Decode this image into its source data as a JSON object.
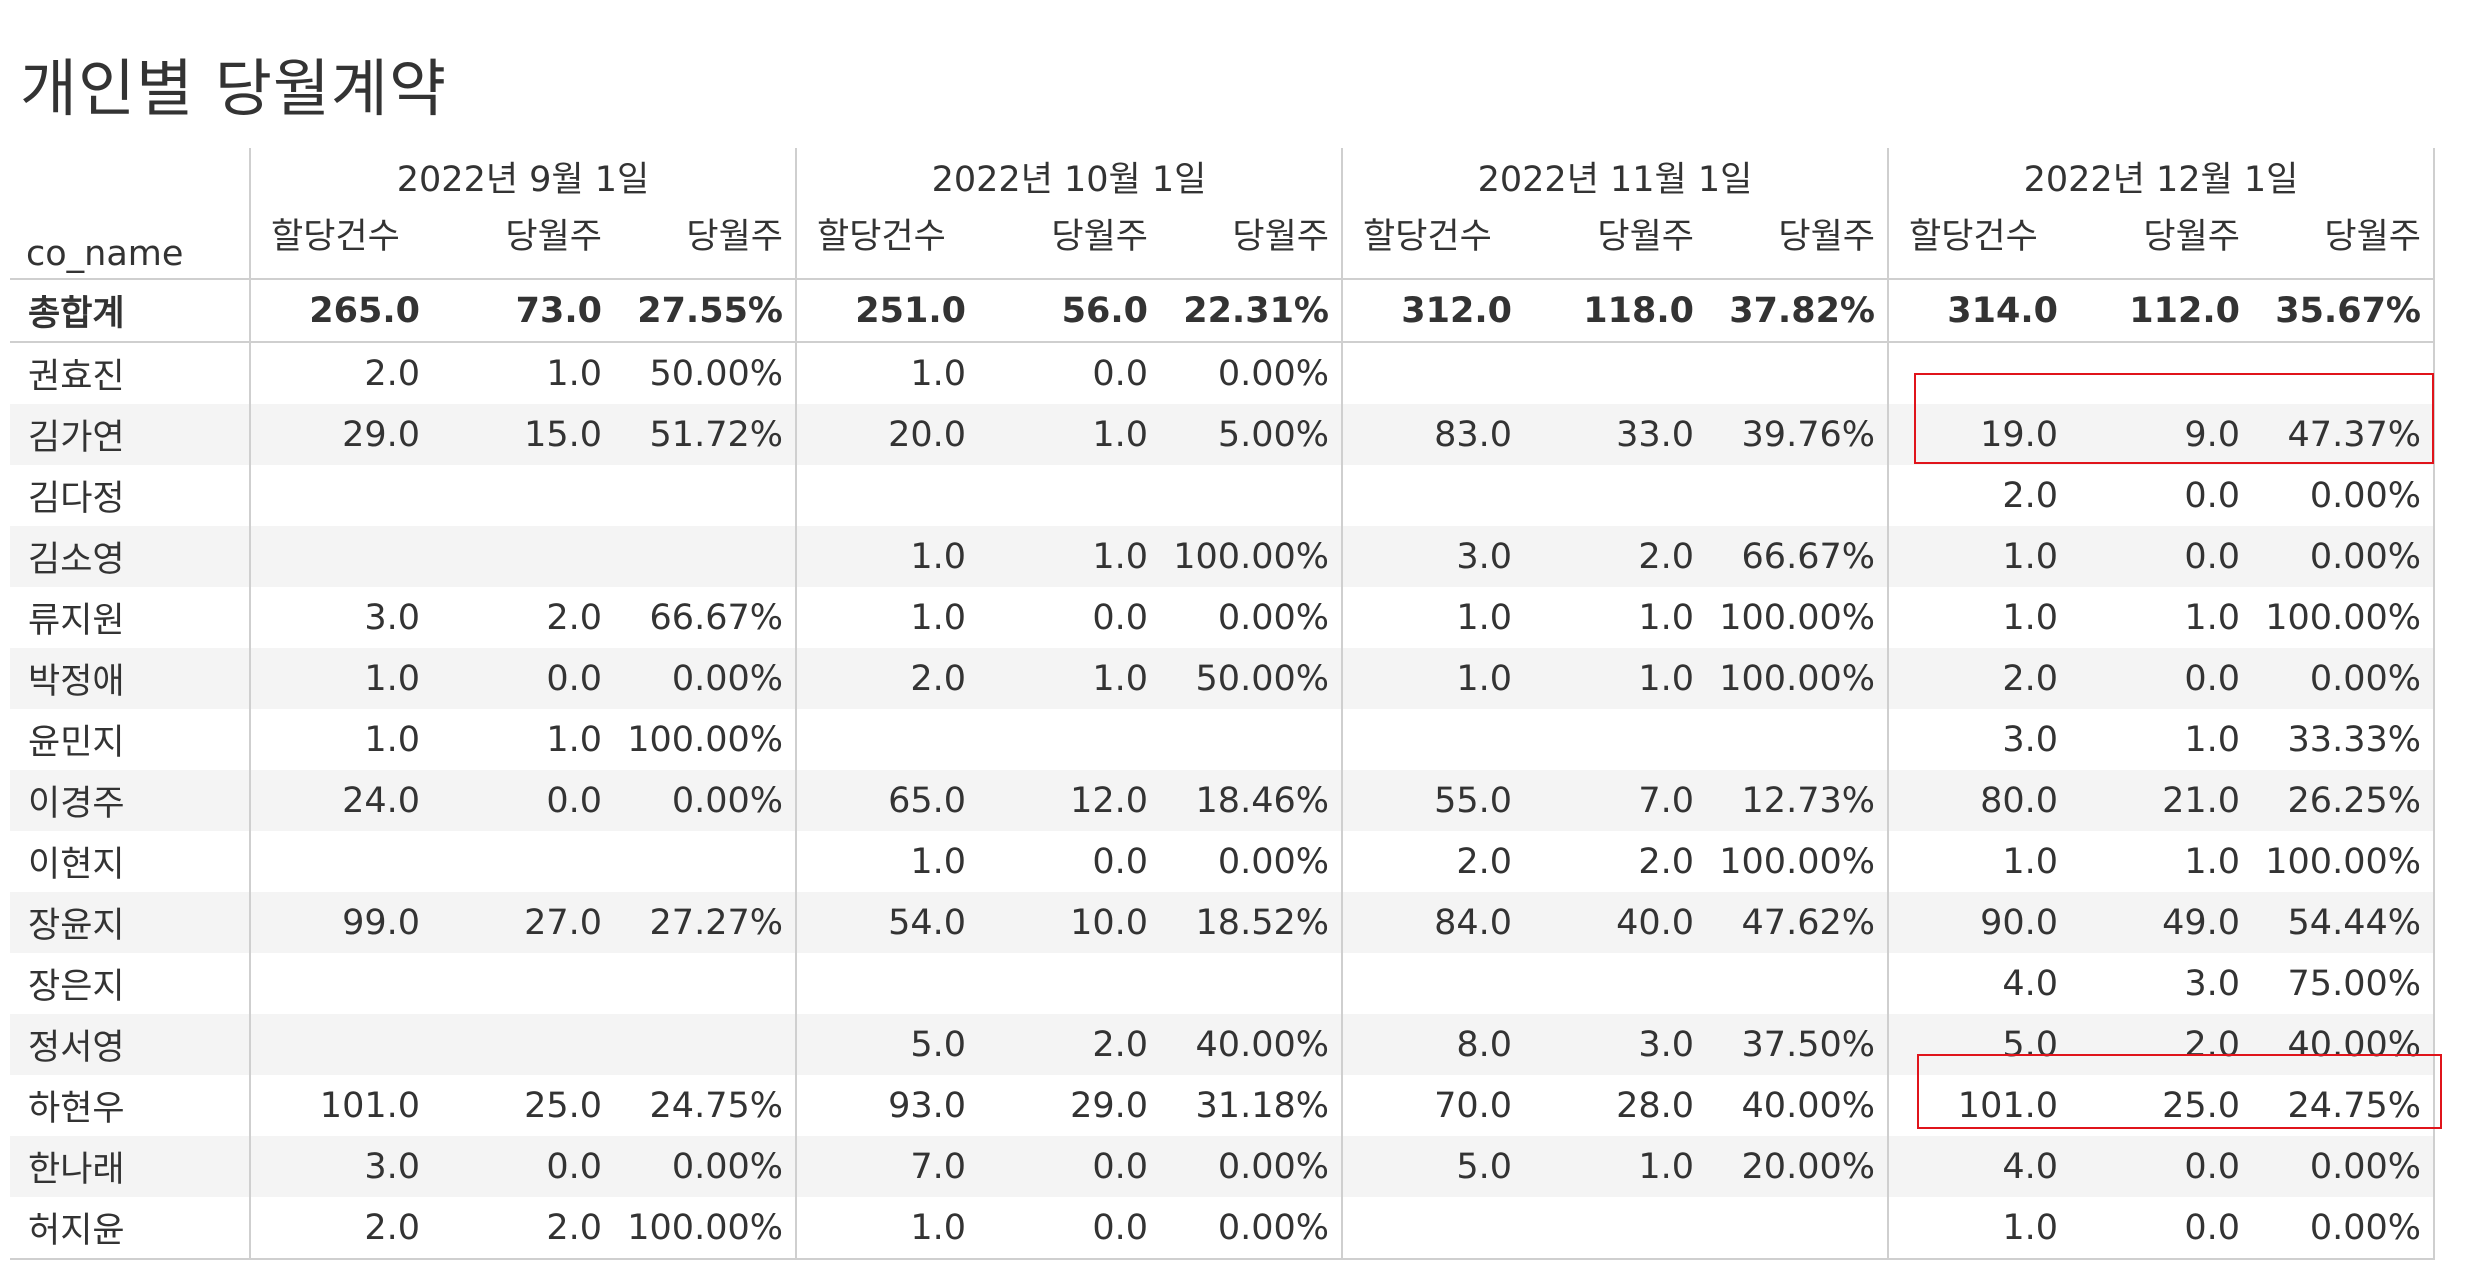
{
  "title": "개인별 당월계약",
  "row_header": "co_name",
  "periods": [
    "2022년 9월 1일",
    "2022년 10월 1일",
    "2022년 11월 1일",
    "2022년 12월 1일"
  ],
  "sub_headers": [
    "할당건수",
    "당월주",
    "당월주"
  ],
  "rows": [
    {
      "name": "총합계",
      "cells": [
        "265.0",
        "73.0",
        "27.55%",
        "251.0",
        "56.0",
        "22.31%",
        "312.0",
        "118.0",
        "37.82%",
        "314.0",
        "112.0",
        "35.67%"
      ]
    },
    {
      "name": "권효진",
      "cells": [
        "2.0",
        "1.0",
        "50.00%",
        "1.0",
        "0.0",
        "0.00%",
        "",
        "",
        "",
        "",
        "",
        ""
      ]
    },
    {
      "name": "김가연",
      "cells": [
        "29.0",
        "15.0",
        "51.72%",
        "20.0",
        "1.0",
        "5.00%",
        "83.0",
        "33.0",
        "39.76%",
        "19.0",
        "9.0",
        "47.37%"
      ]
    },
    {
      "name": "김다정",
      "cells": [
        "",
        "",
        "",
        "",
        "",
        "",
        "",
        "",
        "",
        "2.0",
        "0.0",
        "0.00%"
      ]
    },
    {
      "name": "김소영",
      "cells": [
        "",
        "",
        "",
        "1.0",
        "1.0",
        "100.00%",
        "3.0",
        "2.0",
        "66.67%",
        "1.0",
        "0.0",
        "0.00%"
      ]
    },
    {
      "name": "류지원",
      "cells": [
        "3.0",
        "2.0",
        "66.67%",
        "1.0",
        "0.0",
        "0.00%",
        "1.0",
        "1.0",
        "100.00%",
        "1.0",
        "1.0",
        "100.00%"
      ]
    },
    {
      "name": "박정애",
      "cells": [
        "1.0",
        "0.0",
        "0.00%",
        "2.0",
        "1.0",
        "50.00%",
        "1.0",
        "1.0",
        "100.00%",
        "2.0",
        "0.0",
        "0.00%"
      ]
    },
    {
      "name": "윤민지",
      "cells": [
        "1.0",
        "1.0",
        "100.00%",
        "",
        "",
        "",
        "",
        "",
        "",
        "3.0",
        "1.0",
        "33.33%"
      ]
    },
    {
      "name": "이경주",
      "cells": [
        "24.0",
        "0.0",
        "0.00%",
        "65.0",
        "12.0",
        "18.46%",
        "55.0",
        "7.0",
        "12.73%",
        "80.0",
        "21.0",
        "26.25%"
      ]
    },
    {
      "name": "이현지",
      "cells": [
        "",
        "",
        "",
        "1.0",
        "0.0",
        "0.00%",
        "2.0",
        "2.0",
        "100.00%",
        "1.0",
        "1.0",
        "100.00%"
      ]
    },
    {
      "name": "장윤지",
      "cells": [
        "99.0",
        "27.0",
        "27.27%",
        "54.0",
        "10.0",
        "18.52%",
        "84.0",
        "40.0",
        "47.62%",
        "90.0",
        "49.0",
        "54.44%"
      ]
    },
    {
      "name": "장은지",
      "cells": [
        "",
        "",
        "",
        "",
        "",
        "",
        "",
        "",
        "",
        "4.0",
        "3.0",
        "75.00%"
      ]
    },
    {
      "name": "정서영",
      "cells": [
        "",
        "",
        "",
        "5.0",
        "2.0",
        "40.00%",
        "8.0",
        "3.0",
        "37.50%",
        "5.0",
        "2.0",
        "40.00%"
      ]
    },
    {
      "name": "하현우",
      "cells": [
        "101.0",
        "25.0",
        "24.75%",
        "93.0",
        "29.0",
        "31.18%",
        "70.0",
        "28.0",
        "40.00%",
        "101.0",
        "25.0",
        "24.75%"
      ]
    },
    {
      "name": "한나래",
      "cells": [
        "3.0",
        "0.0",
        "0.00%",
        "7.0",
        "0.0",
        "0.00%",
        "5.0",
        "1.0",
        "20.00%",
        "4.0",
        "0.0",
        "0.00%"
      ]
    },
    {
      "name": "허지윤",
      "cells": [
        "2.0",
        "2.0",
        "100.00%",
        "1.0",
        "0.0",
        "0.00%",
        "",
        "",
        "",
        "1.0",
        "0.0",
        "0.00%"
      ]
    }
  ],
  "highlight_color": "#e0141b"
}
